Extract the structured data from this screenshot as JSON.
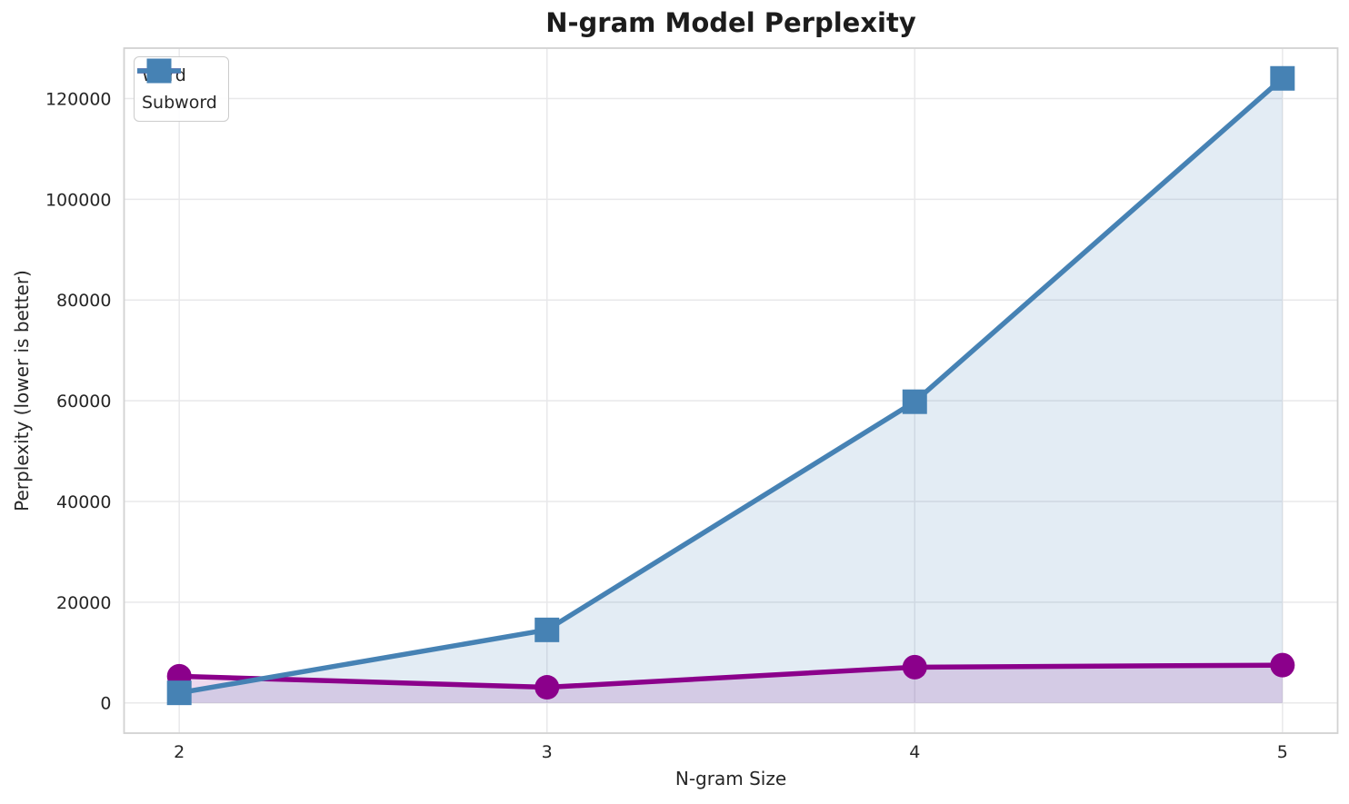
{
  "figure": {
    "title": "N-gram Model Perplexity"
  },
  "chart_data": {
    "type": "line",
    "title": "N-gram Model Perplexity",
    "xlabel": "N-gram Size",
    "ylabel": "Perplexity (lower is better)",
    "x": [
      2,
      3,
      4,
      5
    ],
    "series": [
      {
        "name": "Word",
        "values": [
          5300,
          3100,
          7100,
          7500
        ],
        "color": "#8B008B",
        "marker": "circle"
      },
      {
        "name": "Subword",
        "values": [
          2000,
          14500,
          59800,
          124000
        ],
        "color": "#4682B4",
        "marker": "square"
      }
    ],
    "xlim": [
      1.85,
      5.15
    ],
    "ylim": [
      -6000,
      130000
    ],
    "xticks": {
      "values": [
        2,
        3,
        4,
        5
      ],
      "labels": [
        "2",
        "3",
        "4",
        "5"
      ]
    },
    "yticks": {
      "values": [
        0,
        20000,
        40000,
        60000,
        80000,
        100000,
        120000
      ],
      "labels": [
        "0",
        "20000",
        "40000",
        "60000",
        "80000",
        "100000",
        "120000"
      ]
    },
    "grid": true,
    "legend_position": "upper-left",
    "fill_alpha": 0.15,
    "fill_baseline": 0
  },
  "style": {
    "grid_color": "#e8e8ea",
    "spine_color": "#d2d2d2",
    "line_width": 5.5,
    "marker_radius": 13.5
  }
}
